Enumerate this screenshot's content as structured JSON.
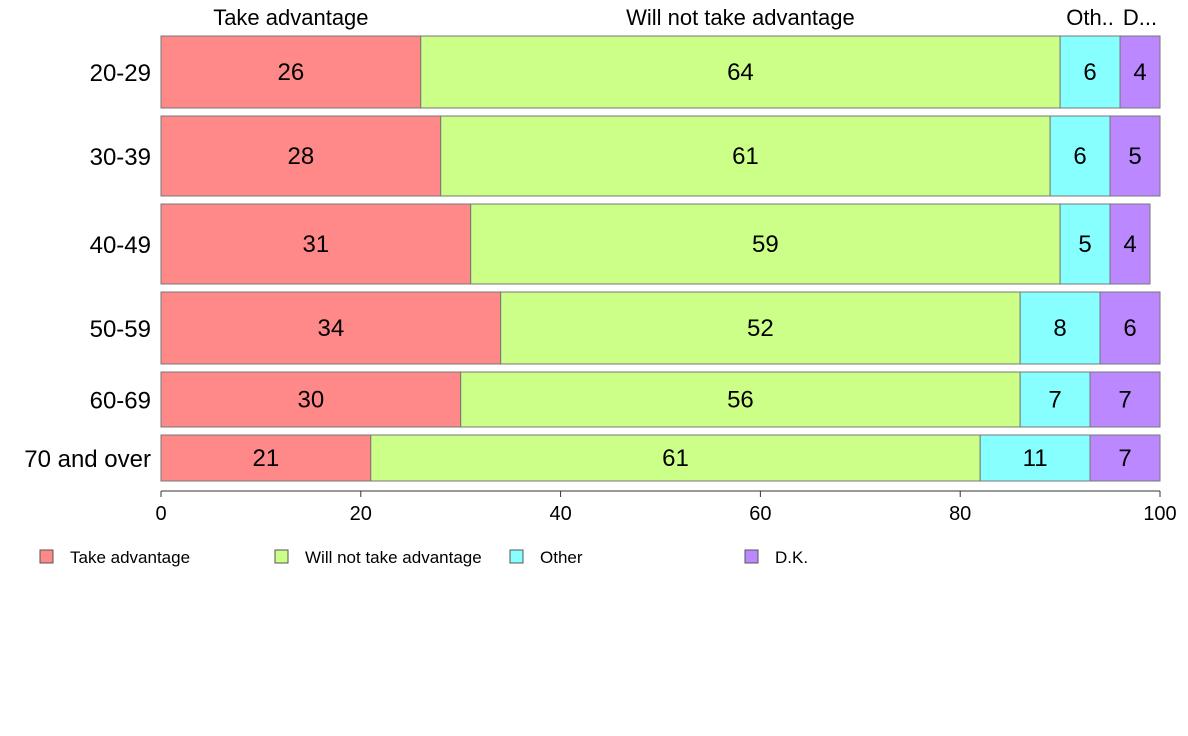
{
  "chart_data": {
    "type": "bar",
    "orientation": "horizontal",
    "stacked": true,
    "categories": [
      "20-29",
      "30-39",
      "40-49",
      "50-59",
      "60-69",
      "70 and over"
    ],
    "row_weights": [
      72,
      80,
      80,
      72,
      55,
      46
    ],
    "series": [
      {
        "name": "Take advantage",
        "header": "Take advantage",
        "color": "#ff8888",
        "values": [
          26,
          28,
          31,
          34,
          30,
          21
        ]
      },
      {
        "name": "Will not take advantage",
        "header": "Will not take advantage",
        "color": "#ccff88",
        "values": [
          64,
          61,
          59,
          52,
          56,
          61
        ]
      },
      {
        "name": "Other",
        "header": "Oth..",
        "color": "#88ffff",
        "values": [
          6,
          6,
          5,
          8,
          7,
          11
        ]
      },
      {
        "name": "D.K.",
        "header": "D...",
        "color": "#bb88ff",
        "values": [
          4,
          5,
          4,
          6,
          7,
          7
        ]
      }
    ],
    "xlim": [
      0,
      100
    ],
    "xticks": [
      0,
      20,
      40,
      60,
      80,
      100
    ],
    "legend_position": "bottom-left",
    "grid": false
  }
}
